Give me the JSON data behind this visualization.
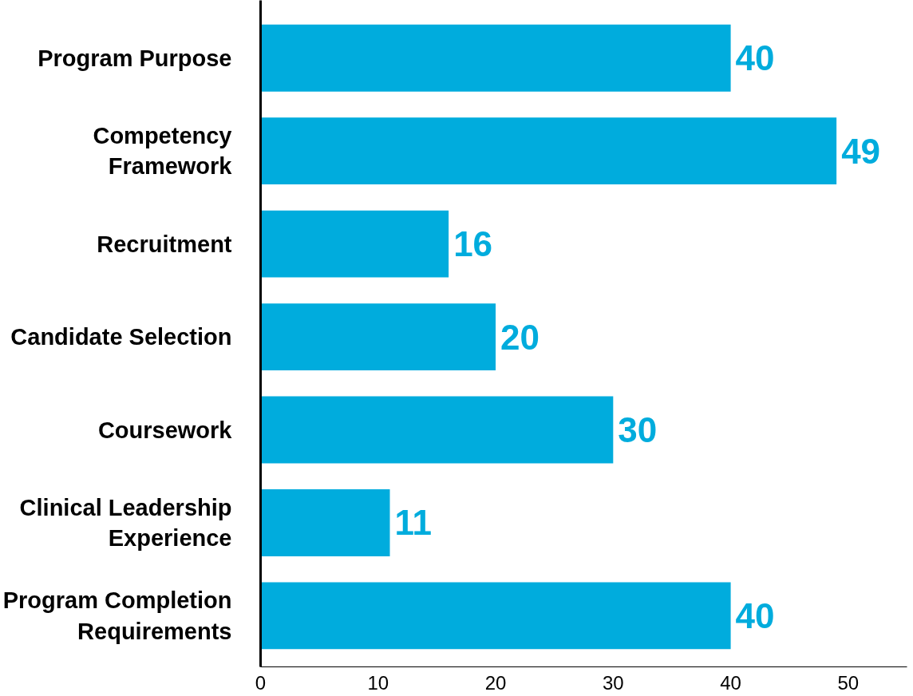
{
  "chart_data": {
    "type": "bar",
    "orientation": "horizontal",
    "categories": [
      "Program Purpose",
      "Competency Framework",
      "Recruitment",
      "Candidate Selection",
      "Coursework",
      "Clinical Leadership Experience",
      "Program Completion Requirements"
    ],
    "values": [
      40,
      49,
      16,
      20,
      30,
      11,
      40
    ],
    "color": "#00acdd",
    "xlim": [
      0,
      55
    ],
    "xticks": [
      0,
      10,
      20,
      30,
      40,
      50
    ],
    "data_labels": true,
    "grid": false
  }
}
